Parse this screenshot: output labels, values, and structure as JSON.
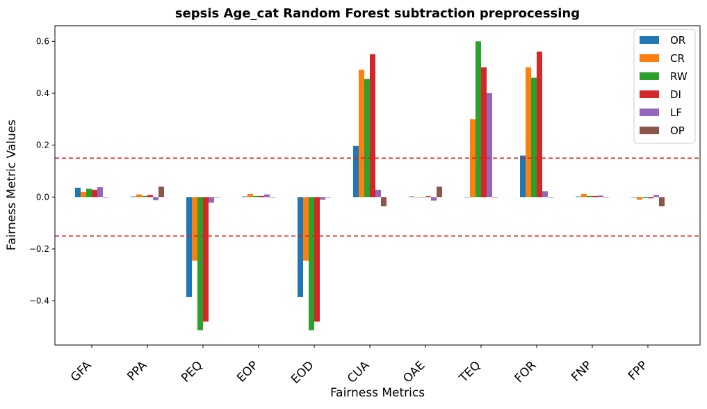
{
  "chart_data": {
    "type": "bar",
    "title": "sepsis Age_cat Random Forest subtraction preprocessing",
    "xlabel": "Fairness Metrics",
    "ylabel": "Fairness Metric Values",
    "ylim": [
      -0.57,
      0.66
    ],
    "yticks": [
      -0.4,
      -0.2,
      0.0,
      0.2,
      0.4,
      0.6
    ],
    "ytick_labels": [
      "−0.4",
      "−0.2",
      "0.0",
      "0.2",
      "0.4",
      "0.6"
    ],
    "categories": [
      "GFA",
      "PPA",
      "PEQ",
      "EOP",
      "EOD",
      "CUA",
      "OAE",
      "TEQ",
      "FOR",
      "FNP",
      "FPP"
    ],
    "series": [
      {
        "name": "OR",
        "color": "#1f77b4",
        "values": [
          0.036,
          0.002,
          -0.385,
          0.002,
          -0.385,
          0.197,
          0.002,
          0.0,
          0.16,
          0.002,
          0.0
        ]
      },
      {
        "name": "CR",
        "color": "#ff7f0e",
        "values": [
          0.02,
          0.01,
          -0.245,
          0.012,
          -0.245,
          0.49,
          0.0,
          0.3,
          0.5,
          0.012,
          -0.01
        ]
      },
      {
        "name": "RW",
        "color": "#2ca02c",
        "values": [
          0.032,
          0.004,
          -0.513,
          0.004,
          -0.513,
          0.455,
          0.0,
          0.6,
          0.46,
          0.004,
          -0.004
        ]
      },
      {
        "name": "DI",
        "color": "#d62728",
        "values": [
          0.028,
          0.008,
          -0.48,
          0.004,
          -0.48,
          0.55,
          0.003,
          0.5,
          0.56,
          0.004,
          -0.005
        ]
      },
      {
        "name": "LF",
        "color": "#9467bd",
        "values": [
          0.038,
          -0.012,
          -0.022,
          0.01,
          -0.01,
          0.028,
          -0.014,
          0.4,
          0.022,
          0.006,
          0.008
        ]
      },
      {
        "name": "OP",
        "color": "#8c564b",
        "values": [
          0.0,
          0.04,
          0.0,
          0.0,
          0.0,
          -0.035,
          0.04,
          0.0,
          0.0,
          0.0,
          -0.035
        ]
      }
    ],
    "reference_lines": [
      0.15,
      -0.15
    ],
    "reference_line_color": "#e41a1c",
    "legend_position": "top-right",
    "grid": false
  }
}
